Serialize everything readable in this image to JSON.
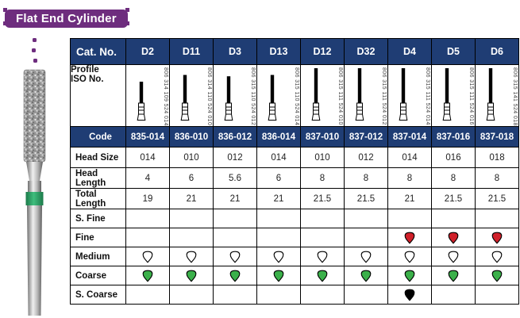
{
  "title": "Flat End Cylinder",
  "colors": {
    "ribbon_purple": "#6E2D7E",
    "header_navy": "#1F3D74",
    "grit_green": "#3BB04A",
    "grit_red": "#D0202A",
    "grit_black": "#000000",
    "grit_white": "#FFFFFF",
    "band_green": "#2EA865"
  },
  "table": {
    "cat_no_label": "Cat. No.",
    "profile_label_lines": [
      "Profile",
      "ISO No."
    ],
    "columns": [
      "D2",
      "D11",
      "D3",
      "D13",
      "D12",
      "D32",
      "D4",
      "D5",
      "D6"
    ],
    "iso_numbers": [
      "806 314 109 524 014",
      "806 314 110 524 010",
      "806 315 110 524 012",
      "806 315 110 524 014",
      "806 315 111 524 010",
      "806 315 111 524 012",
      "806 315 111 524 014",
      "806 315 111 524 016",
      "806 315 141 524 018"
    ],
    "code_row": {
      "label": "Code",
      "values": [
        "835-014",
        "836-010",
        "836-012",
        "836-014",
        "837-010",
        "837-012",
        "837-014",
        "837-016",
        "837-018"
      ]
    },
    "spec_rows": [
      {
        "label": "Head Size",
        "values": [
          "014",
          "010",
          "012",
          "014",
          "010",
          "012",
          "014",
          "016",
          "018"
        ]
      },
      {
        "label": "Head Length",
        "values": [
          "4",
          "6",
          "5.6",
          "6",
          "8",
          "8",
          "8",
          "8",
          "8"
        ]
      },
      {
        "label": "Total Length",
        "values": [
          "19",
          "21",
          "21",
          "21",
          "21.5",
          "21.5",
          "21",
          "21.5",
          "21.5"
        ]
      }
    ],
    "grit_rows": [
      {
        "label": "S. Fine",
        "marks": [
          null,
          null,
          null,
          null,
          null,
          null,
          null,
          null,
          null
        ]
      },
      {
        "label": "Fine",
        "marks": [
          null,
          null,
          null,
          null,
          null,
          null,
          "red",
          "red",
          "red"
        ]
      },
      {
        "label": "Medium",
        "marks": [
          "white",
          "white",
          "white",
          "white",
          "white",
          "white",
          "white",
          "white",
          "white"
        ]
      },
      {
        "label": "Coarse",
        "marks": [
          "green",
          "green",
          "green",
          "green",
          "green",
          "green",
          "green",
          "green",
          "green"
        ]
      },
      {
        "label": "S. Coarse",
        "marks": [
          null,
          null,
          null,
          null,
          null,
          null,
          "black",
          null,
          null
        ]
      }
    ]
  }
}
